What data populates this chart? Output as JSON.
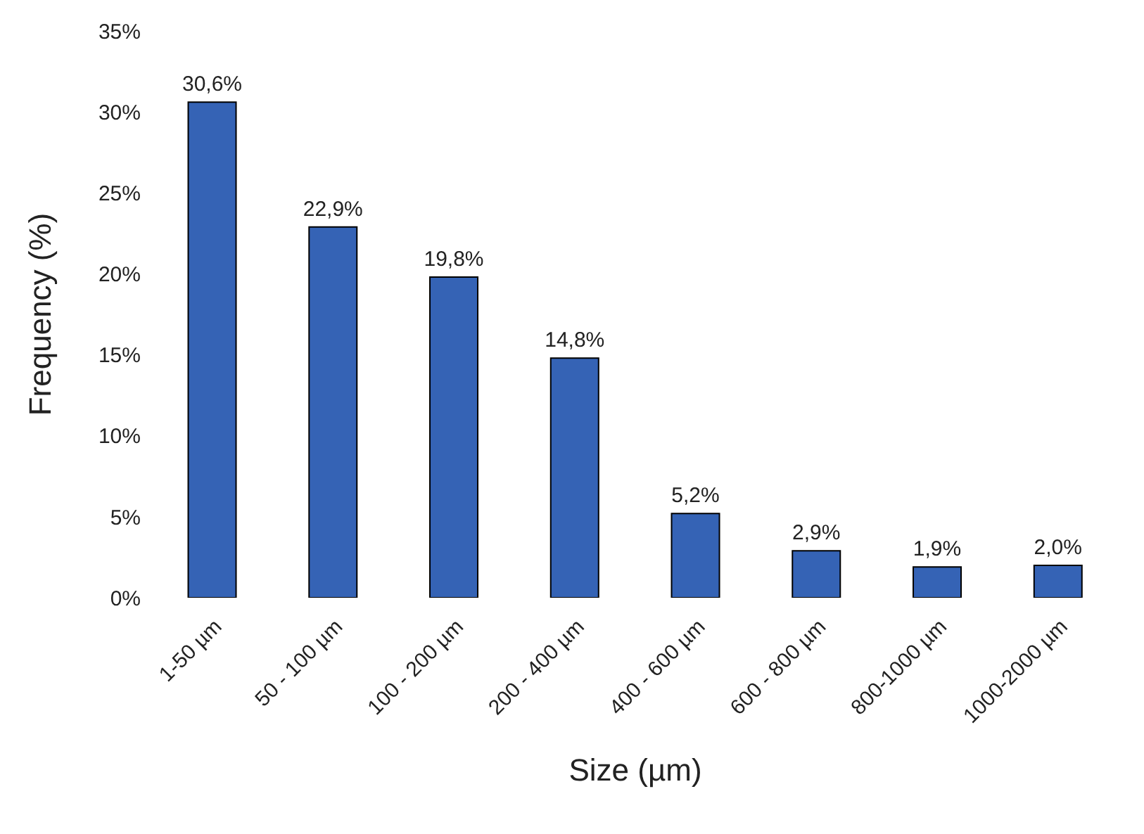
{
  "chart_data": {
    "type": "bar",
    "xlabel": "Size (µm)",
    "ylabel": "Frequency (%)",
    "categories": [
      "1-50 µm",
      "50 - 100 µm",
      "100 - 200 µm",
      "200 - 400 µm",
      "400 - 600 µm",
      "600 - 800 µm",
      "800-1000 µm",
      "1000-2000 µm"
    ],
    "values": [
      30.6,
      22.9,
      19.8,
      14.8,
      5.2,
      2.9,
      1.9,
      2.0
    ],
    "value_labels": [
      "30,6%",
      "22,9%",
      "19,8%",
      "14,8%",
      "5,2%",
      "2,9%",
      "1,9%",
      "2,0%"
    ],
    "color": "#3563b5",
    "ylim": [
      0,
      35
    ],
    "yticks": [
      {
        "value": 0,
        "label": "0%"
      },
      {
        "value": 5,
        "label": "5%"
      },
      {
        "value": 10,
        "label": "10%"
      },
      {
        "value": 15,
        "label": "15%"
      },
      {
        "value": 20,
        "label": "20%"
      },
      {
        "value": 25,
        "label": "25%"
      },
      {
        "value": 30,
        "label": "30%"
      },
      {
        "value": 35,
        "label": "35%"
      }
    ],
    "grid": false,
    "legend": false
  }
}
